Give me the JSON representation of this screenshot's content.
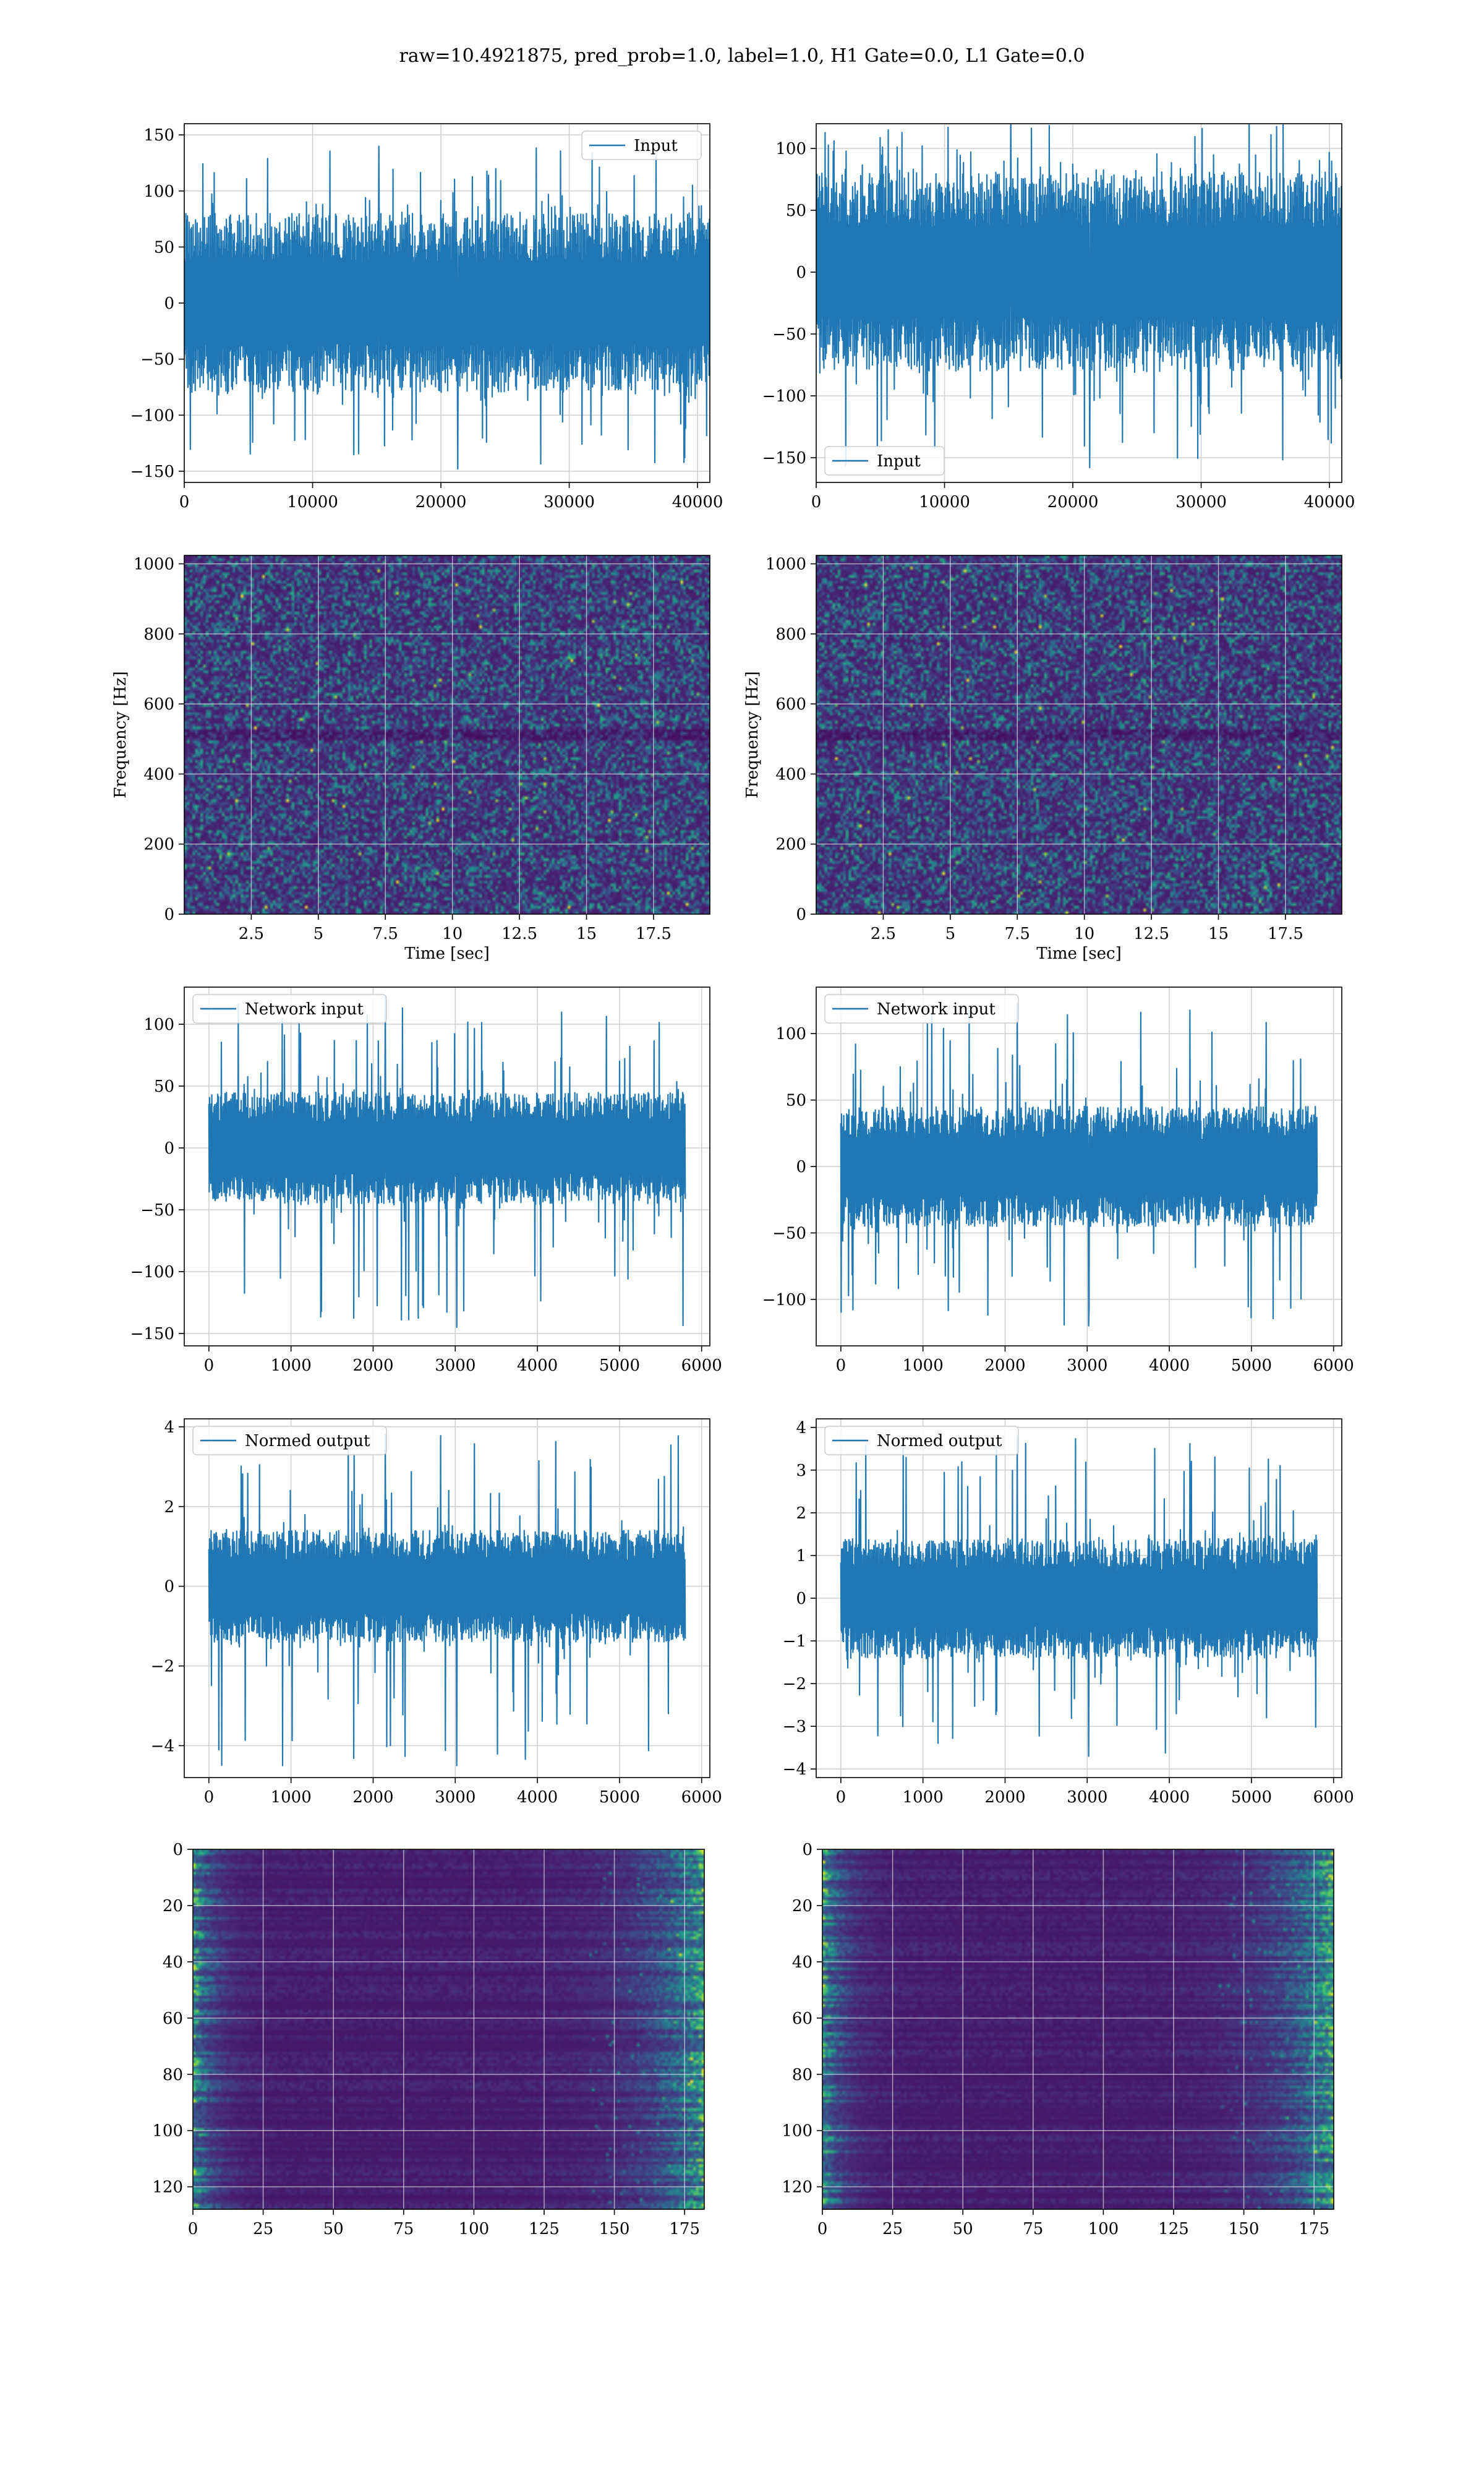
{
  "figure_title": "raw=10.4921875, pred_prob=1.0, label=1.0, H1 Gate=0.0, L1 Gate=0.0",
  "colors": {
    "line": "#1f77b4",
    "grid": "#d0d0d0",
    "viridis": [
      "#440154",
      "#482878",
      "#3e4989",
      "#31688e",
      "#26828e",
      "#1f9e89",
      "#35b779",
      "#6ece58",
      "#b5de2b",
      "#fde725"
    ]
  },
  "chart_data": [
    {
      "id": "r1c1",
      "type": "line",
      "series_style": "dense-noise",
      "legend": "Input",
      "legend_loc": "upper right",
      "xlim": [
        0,
        40960
      ],
      "ylim": [
        -160,
        160
      ],
      "x_extent": [
        0,
        40960
      ],
      "xticks": [
        0,
        10000,
        20000,
        30000,
        40000
      ],
      "yticks": [
        -150,
        -100,
        -50,
        0,
        50,
        100,
        150
      ],
      "envelope": {
        "core_low": -80,
        "core_high": 80,
        "min": -148,
        "max": 140
      },
      "xlabel": "",
      "ylabel": "",
      "grid": true
    },
    {
      "id": "r1c2",
      "type": "line",
      "series_style": "dense-noise",
      "legend": "Input",
      "legend_loc": "lower left",
      "xlim": [
        0,
        40960
      ],
      "ylim": [
        -170,
        120
      ],
      "x_extent": [
        0,
        40960
      ],
      "xticks": [
        0,
        10000,
        20000,
        30000,
        40000
      ],
      "yticks": [
        -150,
        -100,
        -50,
        0,
        50,
        100
      ],
      "envelope": {
        "core_low": -80,
        "core_high": 80,
        "min": -158,
        "max": 128
      },
      "xlabel": "",
      "ylabel": "",
      "grid": true
    },
    {
      "id": "r2c1",
      "type": "heatmap",
      "colormap": "viridis",
      "texture": "spectrogram",
      "xlim": [
        0,
        19.6
      ],
      "ylim": [
        0,
        1024
      ],
      "xticks": [
        2.5,
        5.0,
        7.5,
        10.0,
        12.5,
        15.0,
        17.5
      ],
      "yticks": [
        0,
        200,
        400,
        600,
        800,
        1000
      ],
      "xlabel": "Time [sec]",
      "ylabel": "Frequency [Hz]",
      "grid": true
    },
    {
      "id": "r2c2",
      "type": "heatmap",
      "colormap": "viridis",
      "texture": "spectrogram",
      "xlim": [
        0,
        19.6
      ],
      "ylim": [
        0,
        1024
      ],
      "xticks": [
        2.5,
        5.0,
        7.5,
        10.0,
        12.5,
        15.0,
        17.5
      ],
      "yticks": [
        0,
        200,
        400,
        600,
        800,
        1000
      ],
      "xlabel": "Time [sec]",
      "ylabel": "Frequency [Hz]",
      "grid": true
    },
    {
      "id": "r3c1",
      "type": "line",
      "series_style": "dense-noise",
      "legend": "Network input",
      "legend_loc": "upper left",
      "xlim": [
        -300,
        6100
      ],
      "ylim": [
        -160,
        130
      ],
      "x_extent": [
        0,
        5800
      ],
      "xticks": [
        0,
        1000,
        2000,
        3000,
        4000,
        5000,
        6000
      ],
      "yticks": [
        -150,
        -100,
        -50,
        0,
        50,
        100
      ],
      "envelope": {
        "core_low": -45,
        "core_high": 45,
        "min": -145,
        "max": 122
      },
      "xlabel": "",
      "ylabel": "",
      "grid": true
    },
    {
      "id": "r3c2",
      "type": "line",
      "series_style": "dense-noise",
      "legend": "Network input",
      "legend_loc": "upper left",
      "xlim": [
        -300,
        6100
      ],
      "ylim": [
        -135,
        135
      ],
      "x_extent": [
        0,
        5800
      ],
      "xticks": [
        0,
        1000,
        2000,
        3000,
        4000,
        5000,
        6000
      ],
      "yticks": [
        -100,
        -50,
        0,
        50,
        100
      ],
      "envelope": {
        "core_low": -45,
        "core_high": 45,
        "min": -120,
        "max": 123
      },
      "xlabel": "",
      "ylabel": "",
      "grid": true
    },
    {
      "id": "r4c1",
      "type": "line",
      "series_style": "dense-noise",
      "legend": "Normed output",
      "legend_loc": "upper left",
      "xlim": [
        -300,
        6100
      ],
      "ylim": [
        -4.8,
        4.2
      ],
      "x_extent": [
        0,
        5800
      ],
      "xticks": [
        0,
        1000,
        2000,
        3000,
        4000,
        5000,
        6000
      ],
      "yticks": [
        -4,
        -2,
        0,
        2,
        4
      ],
      "envelope": {
        "core_low": -1.4,
        "core_high": 1.4,
        "min": -4.5,
        "max": 3.8
      },
      "xlabel": "",
      "ylabel": "",
      "grid": true
    },
    {
      "id": "r4c2",
      "type": "line",
      "series_style": "dense-noise",
      "legend": "Normed output",
      "legend_loc": "upper left",
      "xlim": [
        -300,
        6100
      ],
      "ylim": [
        -4.2,
        4.2
      ],
      "x_extent": [
        0,
        5800
      ],
      "xticks": [
        0,
        1000,
        2000,
        3000,
        4000,
        5000,
        6000
      ],
      "yticks": [
        -4,
        -3,
        -2,
        -1,
        0,
        1,
        2,
        3,
        4
      ],
      "envelope": {
        "core_low": -1.4,
        "core_high": 1.4,
        "min": -3.7,
        "max": 3.8
      },
      "xlabel": "",
      "ylabel": "",
      "grid": true
    },
    {
      "id": "r5c1",
      "type": "heatmap",
      "colormap": "viridis",
      "texture": "feature-map",
      "xlim": [
        0,
        182
      ],
      "ylim": [
        128,
        0
      ],
      "y_inverted": true,
      "xticks": [
        0,
        25,
        50,
        75,
        100,
        125,
        150,
        175
      ],
      "yticks": [
        0,
        20,
        40,
        60,
        80,
        100,
        120
      ],
      "xlabel": "",
      "ylabel": "",
      "grid": true
    },
    {
      "id": "r5c2",
      "type": "heatmap",
      "colormap": "viridis",
      "texture": "feature-map",
      "xlim": [
        0,
        182
      ],
      "ylim": [
        128,
        0
      ],
      "y_inverted": true,
      "xticks": [
        0,
        25,
        50,
        75,
        100,
        125,
        150,
        175
      ],
      "yticks": [
        0,
        20,
        40,
        60,
        80,
        100,
        120
      ],
      "xlabel": "",
      "ylabel": "",
      "grid": true
    }
  ]
}
